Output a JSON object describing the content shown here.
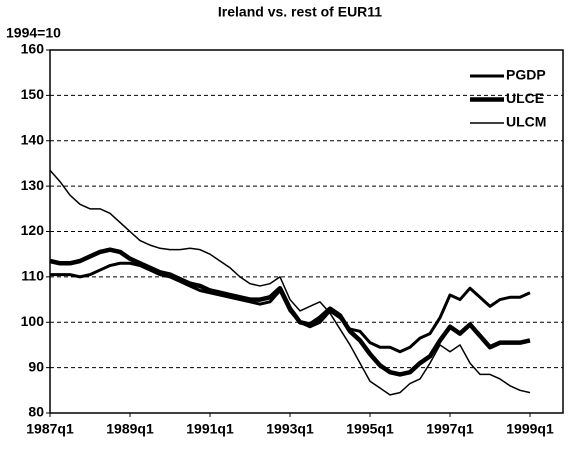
{
  "chart_data": {
    "type": "line",
    "title": "Ireland vs. rest of EUR11",
    "y_label": "1994=10",
    "categories": [
      "1987q1",
      null,
      null,
      null,
      null,
      null,
      null,
      null,
      "1989q1",
      null,
      null,
      null,
      null,
      null,
      null,
      null,
      "1991q1",
      null,
      null,
      null,
      null,
      null,
      null,
      null,
      "1993q1",
      null,
      null,
      null,
      null,
      null,
      null,
      null,
      "1995q1",
      null,
      null,
      null,
      null,
      null,
      null,
      null,
      "1997q1",
      null,
      null,
      null,
      null,
      null,
      null,
      null,
      "1999q1"
    ],
    "series": [
      {
        "name": "PGDP",
        "color": "#000000",
        "width": 3,
        "values": [
          110.5,
          110.5,
          110.5,
          110,
          110.5,
          111.5,
          112.5,
          113,
          113,
          112.5,
          111.5,
          110.5,
          110,
          109,
          108,
          107,
          106.5,
          106,
          105.5,
          105,
          104.5,
          104,
          104.5,
          107,
          102.5,
          100,
          99,
          100,
          102.5,
          101,
          98.5,
          98,
          95.5,
          94.5,
          94.5,
          93.5,
          94.5,
          96.5,
          97.5,
          101,
          106,
          105,
          107.5,
          105.5,
          103.5,
          105,
          105.5,
          105.5,
          106.5
        ]
      },
      {
        "name": "ULCE",
        "color": "#000000",
        "width": 4.5,
        "values": [
          113.5,
          113,
          113,
          113.5,
          114.5,
          115.5,
          116,
          115.5,
          114,
          113,
          112,
          111,
          110.5,
          109.5,
          108.5,
          108,
          107,
          106.5,
          106,
          105.5,
          105,
          105,
          105.5,
          107.5,
          103,
          100,
          99.5,
          101,
          103,
          101.5,
          98,
          96,
          93,
          90.5,
          89,
          88.5,
          89,
          91,
          92.5,
          96,
          99,
          97.5,
          99.5,
          97,
          94.5,
          95.5,
          95.5,
          95.5,
          96
        ]
      },
      {
        "name": "ULCM",
        "color": "#000000",
        "width": 1.5,
        "values": [
          133.5,
          131,
          128,
          126,
          125,
          125,
          124,
          122,
          120,
          118,
          117,
          116.3,
          116,
          116,
          116.3,
          116,
          115,
          113.5,
          112,
          110,
          108.5,
          108,
          108.5,
          110,
          105,
          102.5,
          103.5,
          104.5,
          102,
          98.5,
          95,
          91,
          87,
          85.5,
          84,
          84.5,
          86.5,
          87.5,
          91,
          95,
          93.5,
          95,
          91,
          88.5,
          88.5,
          87.5,
          86,
          85,
          84.5
        ]
      }
    ],
    "ylim": [
      80,
      160
    ],
    "yticks": [
      80,
      90,
      100,
      110,
      120,
      130,
      140,
      150,
      160
    ],
    "grid": true,
    "legend": "upper right"
  }
}
